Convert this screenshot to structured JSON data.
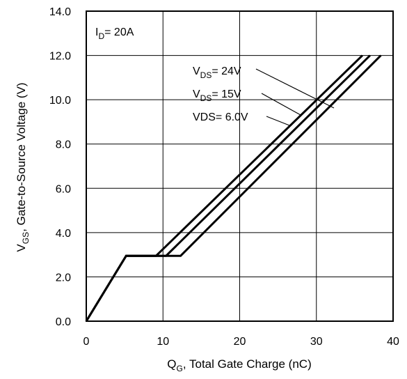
{
  "chart_data": {
    "type": "line",
    "xlabel": {
      "main": "Q",
      "sub": "G",
      "rest": ",  Total Gate Charge (nC)"
    },
    "ylabel": {
      "main": "V",
      "sub": "GS",
      "rest": ", Gate-to-Source Voltage (V)"
    },
    "xlim": [
      0,
      40
    ],
    "ylim": [
      0,
      14
    ],
    "x_ticks": [
      0,
      10,
      20,
      30,
      40
    ],
    "x_tick_labels": [
      "0",
      "10",
      "20",
      "30",
      "40"
    ],
    "y_ticks": [
      0,
      2,
      4,
      6,
      8,
      10,
      12,
      14
    ],
    "y_tick_labels": [
      "0.0",
      "2.0",
      "4.0",
      "6.0",
      "8.0",
      "10.0",
      "12.0",
      "14.0"
    ],
    "grid": true,
    "annotation": {
      "main": "I",
      "sub": "D",
      "rest": "= 20A"
    },
    "series": [
      {
        "name": "VDS= 24V",
        "label_main": "V",
        "label_sub": "DS",
        "label_rest": "= 24V",
        "x": [
          0,
          5.2,
          9.1,
          36.0
        ],
        "y": [
          0,
          2.95,
          2.95,
          12.0
        ]
      },
      {
        "name": "VDS= 15V",
        "label_main": "V",
        "label_sub": "DS",
        "label_rest": "= 15V",
        "x": [
          0,
          5.2,
          10.4,
          37.0
        ],
        "y": [
          0,
          2.95,
          2.95,
          12.0
        ]
      },
      {
        "name": "VDS= 6.0V",
        "label_main": "VDS= 6.0V",
        "label_sub": "",
        "label_rest": "",
        "x": [
          0,
          5.2,
          12.3,
          38.4
        ],
        "y": [
          0,
          2.95,
          2.95,
          12.0
        ]
      }
    ],
    "colors": {
      "line": "#000000",
      "grid": "#000000"
    }
  }
}
